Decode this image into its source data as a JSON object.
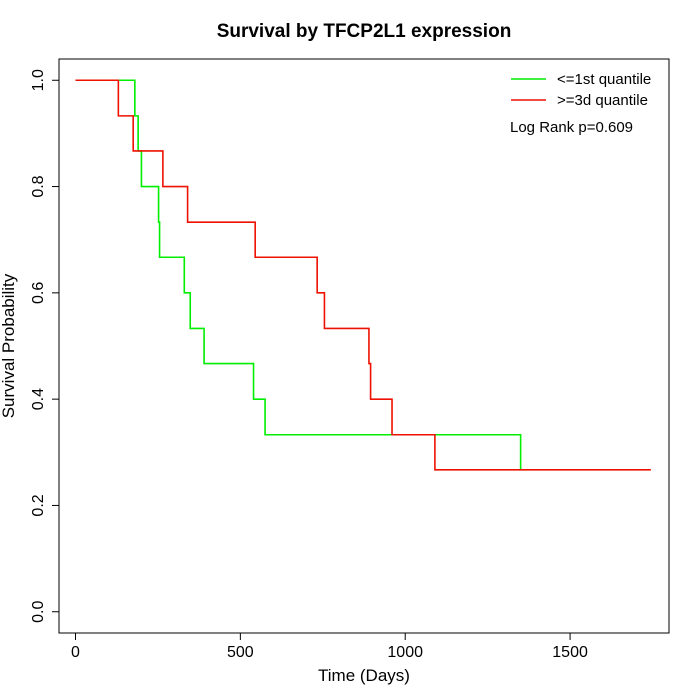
{
  "chart_data": {
    "type": "line",
    "title": "Survival by TFCP2L1 expression",
    "xlabel": "Time (Days)",
    "ylabel": "Survival Probability",
    "xlim": [
      -50,
      1800
    ],
    "ylim": [
      -0.04,
      1.04
    ],
    "x_ticks": [
      0,
      500,
      1000,
      1500
    ],
    "y_ticks": [
      0.0,
      0.2,
      0.4,
      0.6,
      0.8,
      1.0
    ],
    "x_tick_labels": [
      "0",
      "500",
      "1000",
      "1500"
    ],
    "y_tick_labels": [
      "0.0",
      "0.2",
      "0.4",
      "0.6",
      "0.8",
      "1.0"
    ],
    "grid": false,
    "legend_position": "top-right",
    "annotation": "Log Rank p=0.609",
    "series": [
      {
        "name": "<=1st quantile",
        "color": "#00ee00",
        "steps": [
          [
            0,
            1.0
          ],
          [
            180,
            0.933
          ],
          [
            190,
            0.867
          ],
          [
            200,
            0.8
          ],
          [
            252,
            0.733
          ],
          [
            255,
            0.667
          ],
          [
            330,
            0.6
          ],
          [
            348,
            0.533
          ],
          [
            390,
            0.467
          ],
          [
            540,
            0.4
          ],
          [
            575,
            0.333
          ],
          [
            1350,
            0.267
          ]
        ]
      },
      {
        "name": ">=3d quantile",
        "color": "#ee1100",
        "steps": [
          [
            0,
            1.0
          ],
          [
            130,
            0.933
          ],
          [
            175,
            0.867
          ],
          [
            265,
            0.8
          ],
          [
            340,
            0.733
          ],
          [
            545,
            0.667
          ],
          [
            733,
            0.6
          ],
          [
            755,
            0.533
          ],
          [
            890,
            0.467
          ],
          [
            895,
            0.4
          ],
          [
            960,
            0.333
          ],
          [
            1090,
            0.267
          ],
          [
            1745,
            0.267
          ]
        ]
      }
    ]
  }
}
